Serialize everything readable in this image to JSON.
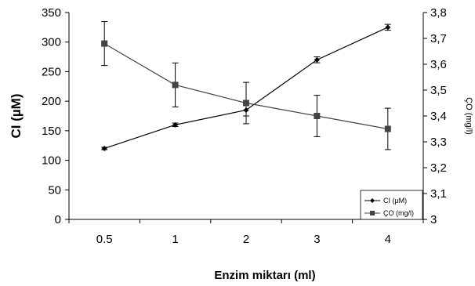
{
  "chart_data": {
    "type": "line",
    "categories": [
      "0.5",
      "1",
      "2",
      "3",
      "4"
    ],
    "xlabel": "Enzim miktarı (ml)",
    "ylabel_left": "CI (µM)",
    "ylabel_right": "ÇO (mg/l)",
    "left_axis": {
      "ylim": [
        0,
        350
      ],
      "ticks": [
        "0",
        "50",
        "100",
        "150",
        "200",
        "250",
        "300",
        "350"
      ]
    },
    "right_axis": {
      "ylim": [
        3,
        3.8
      ],
      "ticks": [
        "3",
        "3,1",
        "3,2",
        "3,3",
        "3,4",
        "3,5",
        "3,6",
        "3,7",
        "3,8"
      ]
    },
    "grid": false,
    "legend_position": "bottom-right",
    "series": [
      {
        "name": "CI (µM)",
        "axis": "left",
        "marker": "diamond",
        "color": "#000000",
        "values": [
          120,
          160,
          185,
          270,
          325
        ],
        "errors": [
          2,
          3,
          10,
          5,
          5
        ]
      },
      {
        "name": "ÇO (mg/l)",
        "axis": "right",
        "marker": "square",
        "color": "#444444",
        "values": [
          3.68,
          3.52,
          3.45,
          3.4,
          3.35
        ],
        "errors": [
          0.085,
          0.085,
          0.08,
          0.08,
          0.08
        ]
      }
    ]
  }
}
